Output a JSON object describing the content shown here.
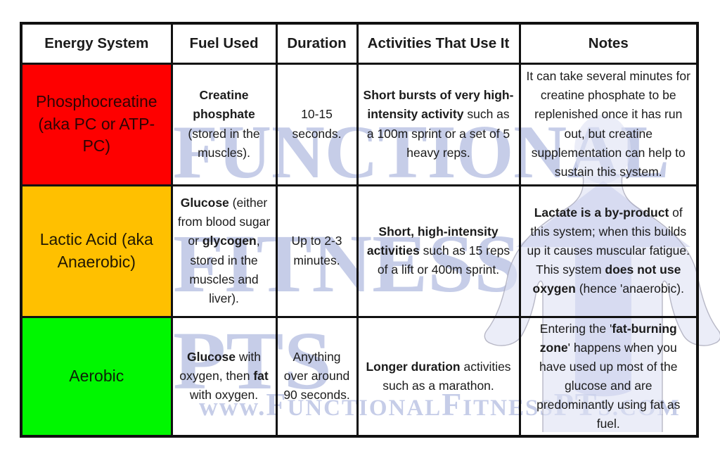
{
  "table": {
    "headers": [
      "Energy System",
      "Fuel Used",
      "Duration",
      "Activities That Use It",
      "Notes"
    ],
    "rows": [
      {
        "system": "Phosphocreatine (aka PC or ATP-PC)",
        "system_bg": "#fe0000",
        "system_color": "#2e0404",
        "fuel": [
          {
            "t": "Creatine phosphate",
            "b": true
          },
          {
            "t": " (stored in the muscles).",
            "b": false
          }
        ],
        "duration": [
          {
            "t": "10-15 seconds.",
            "b": false
          }
        ],
        "activities": [
          {
            "t": "Short bursts of very high-intensity activity",
            "b": true
          },
          {
            "t": " such as a 100m sprint or a set of 5 heavy reps.",
            "b": false
          }
        ],
        "notes": [
          {
            "t": "It can take several minutes for creatine phosphate to be replenished once it has run out, but creatine supplementation can help to sustain this system.",
            "b": false
          }
        ]
      },
      {
        "system": "Lactic Acid (aka Anaerobic)",
        "system_bg": "#ffc000",
        "system_color": "#201703",
        "fuel": [
          {
            "t": "Glucose",
            "b": true
          },
          {
            "t": " (either from blood sugar or ",
            "b": false
          },
          {
            "t": "glycogen",
            "b": true
          },
          {
            "t": ", stored in the muscles and liver).",
            "b": false
          }
        ],
        "duration": [
          {
            "t": "Up to 2-3 minutes.",
            "b": false
          }
        ],
        "activities": [
          {
            "t": "Short, high-intensity activities",
            "b": true
          },
          {
            "t": " such as 15 reps of a lift or 400m sprint.",
            "b": false
          }
        ],
        "notes": [
          {
            "t": "Lactate is a by-product",
            "b": true
          },
          {
            "t": " of this system; when this builds up it causes muscular fatigue. This system ",
            "b": false
          },
          {
            "t": "does not use oxygen",
            "b": true
          },
          {
            "t": " (hence 'anaerobic).",
            "b": false
          }
        ]
      },
      {
        "system": "Aerobic",
        "system_bg": "#00f700",
        "system_color": "#0d2008",
        "fuel": [
          {
            "t": "Glucose",
            "b": true
          },
          {
            "t": " with oxygen, then ",
            "b": false
          },
          {
            "t": "fat",
            "b": true
          },
          {
            "t": " with oxygen.",
            "b": false
          }
        ],
        "duration": [
          {
            "t": "Anything over around 90 seconds.",
            "b": false
          }
        ],
        "activities": [
          {
            "t": "Longer duration",
            "b": true
          },
          {
            "t": " activities such as a marathon.",
            "b": false
          }
        ],
        "notes": [
          {
            "t": "Entering the '",
            "b": false
          },
          {
            "t": "fat-burning zone",
            "b": true
          },
          {
            "t": "' happens when you have used up most of the glucose and are predominantly using fat as fuel.",
            "b": false
          }
        ]
      }
    ]
  },
  "watermark": {
    "line1": "FUNCTIONAL",
    "line2": "FITNESS",
    "line3": "PTS",
    "url_seg0": "www.",
    "url_seg1": "F",
    "url_seg2": "UNCTIONAL",
    "url_seg3": "F",
    "url_seg4": "ITNESS",
    "url_seg5": "PT",
    "url_seg6": "S",
    "url_seg7": ".COM",
    "text_color": "#c6cde8",
    "silhouette_fill": "#dfe2f3",
    "silhouette_stroke": "#a3a3b4",
    "arrow_fill": "#c3c9ea"
  }
}
